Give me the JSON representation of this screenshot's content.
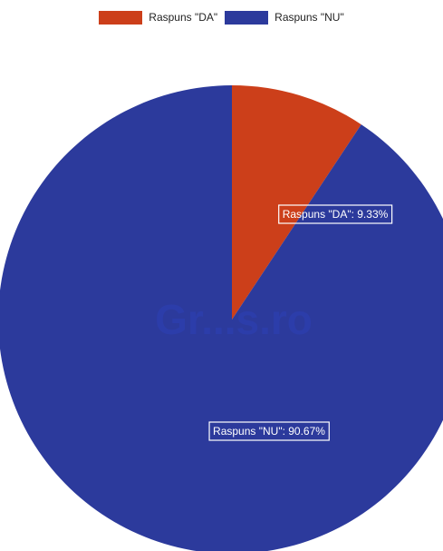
{
  "chart_data": {
    "type": "pie",
    "legend_position": "top",
    "slices": [
      {
        "label": "Raspuns \"DA\"",
        "value": 9.33,
        "color": "#cc3f1a",
        "data_label": "Raspuns \"DA\": 9.33%"
      },
      {
        "label": "Raspuns \"NU\"",
        "value": 90.67,
        "color": "#2c3a9c",
        "data_label": "Raspuns \"NU\": 90.67%"
      }
    ]
  },
  "watermark": "Gr...s.ro"
}
